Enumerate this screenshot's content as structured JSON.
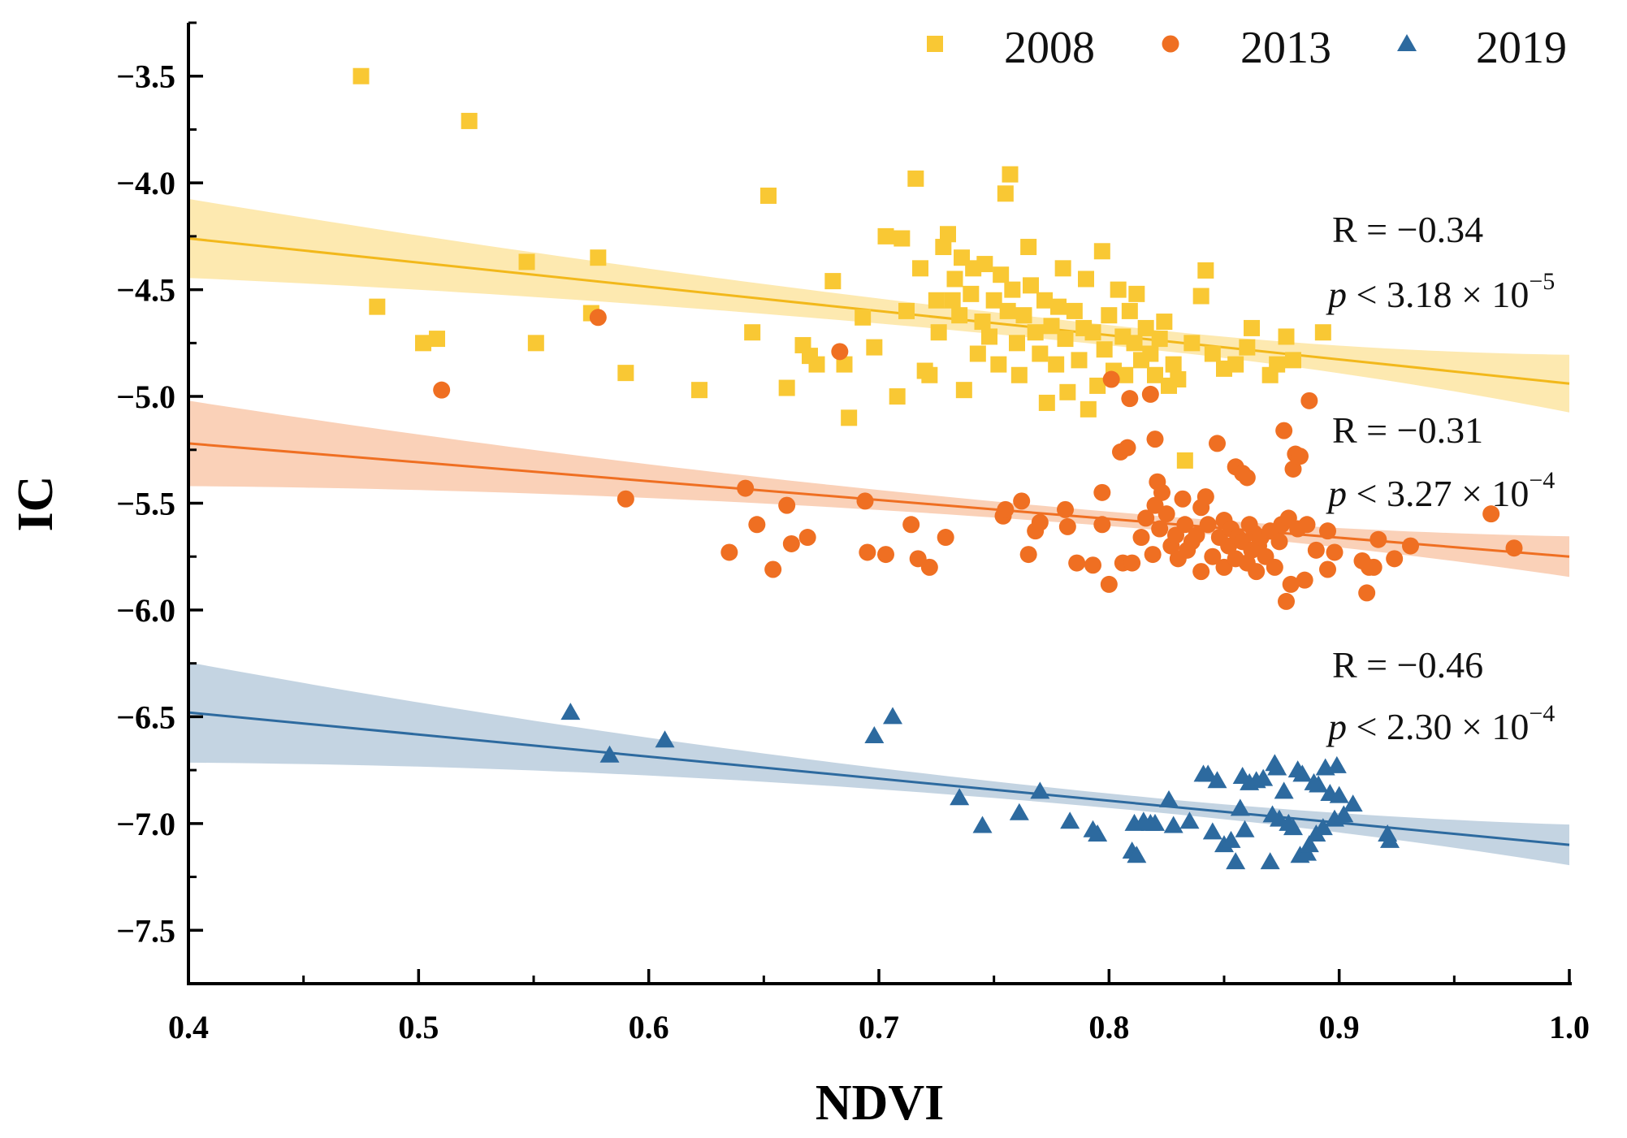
{
  "chart_data": {
    "type": "scatter",
    "title": "",
    "xlabel": "NDVI",
    "ylabel": "IC",
    "xlim": [
      0.4,
      1.0
    ],
    "ylim": [
      -7.75,
      -3.25
    ],
    "xticks": [
      0.4,
      0.5,
      0.6,
      0.7,
      0.8,
      0.9,
      1.0
    ],
    "xtick_labels": [
      "0.4",
      "0.5",
      "0.6",
      "0.7",
      "0.8",
      "0.9",
      "1.0"
    ],
    "yticks": [
      -3.5,
      -4.0,
      -4.5,
      -5.0,
      -5.5,
      -6.0,
      -6.5,
      -7.0,
      -7.5
    ],
    "ytick_labels": [
      "−3.5",
      "−4.0",
      "−4.5",
      "−5.0",
      "−5.5",
      "−6.0",
      "−6.5",
      "−7.0",
      "−7.5"
    ],
    "legend_position": "top-right",
    "series": [
      {
        "name": "2008",
        "marker": "square",
        "color": "#F9C834",
        "band_color": "#FCE39A",
        "line_color": "#F2B81B",
        "fit": {
          "intercept": -4.26,
          "slope_y_at_1": -4.94,
          "ci_start": [
            -4.07,
            -4.44
          ],
          "ci_end": [
            -4.8,
            -5.07
          ]
        },
        "stat": {
          "r": "R = −0.34",
          "p_prefix": "p",
          "p_body": " < 3.18 × 10",
          "p_exp": "−5"
        },
        "points": [
          [
            0.475,
            -3.5
          ],
          [
            0.522,
            -3.71
          ],
          [
            0.547,
            -4.37
          ],
          [
            0.482,
            -4.58
          ],
          [
            0.502,
            -4.75
          ],
          [
            0.508,
            -4.73
          ],
          [
            0.551,
            -4.75
          ],
          [
            0.578,
            -4.35
          ],
          [
            0.575,
            -4.61
          ],
          [
            0.59,
            -4.89
          ],
          [
            0.622,
            -4.97
          ],
          [
            0.645,
            -4.7
          ],
          [
            0.652,
            -4.06
          ],
          [
            0.66,
            -4.96
          ],
          [
            0.667,
            -4.76
          ],
          [
            0.67,
            -4.81
          ],
          [
            0.673,
            -4.85
          ],
          [
            0.68,
            -4.46
          ],
          [
            0.685,
            -4.85
          ],
          [
            0.687,
            -5.1
          ],
          [
            0.693,
            -4.63
          ],
          [
            0.698,
            -4.77
          ],
          [
            0.703,
            -4.25
          ],
          [
            0.708,
            -5.0
          ],
          [
            0.71,
            -4.26
          ],
          [
            0.712,
            -4.6
          ],
          [
            0.716,
            -3.98
          ],
          [
            0.718,
            -4.4
          ],
          [
            0.72,
            -4.88
          ],
          [
            0.722,
            -4.9
          ],
          [
            0.725,
            -4.55
          ],
          [
            0.726,
            -4.7
          ],
          [
            0.728,
            -4.3
          ],
          [
            0.73,
            -4.24
          ],
          [
            0.732,
            -4.55
          ],
          [
            0.733,
            -4.45
          ],
          [
            0.735,
            -4.62
          ],
          [
            0.736,
            -4.35
          ],
          [
            0.737,
            -4.97
          ],
          [
            0.74,
            -4.52
          ],
          [
            0.741,
            -4.4
          ],
          [
            0.743,
            -4.8
          ],
          [
            0.745,
            -4.65
          ],
          [
            0.746,
            -4.38
          ],
          [
            0.748,
            -4.72
          ],
          [
            0.75,
            -4.55
          ],
          [
            0.752,
            -4.85
          ],
          [
            0.753,
            -4.43
          ],
          [
            0.755,
            -4.05
          ],
          [
            0.756,
            -4.6
          ],
          [
            0.757,
            -3.96
          ],
          [
            0.758,
            -4.5
          ],
          [
            0.76,
            -4.75
          ],
          [
            0.761,
            -4.9
          ],
          [
            0.763,
            -4.62
          ],
          [
            0.765,
            -4.3
          ],
          [
            0.766,
            -4.48
          ],
          [
            0.768,
            -4.7
          ],
          [
            0.77,
            -4.8
          ],
          [
            0.772,
            -4.55
          ],
          [
            0.773,
            -5.03
          ],
          [
            0.775,
            -4.67
          ],
          [
            0.777,
            -4.85
          ],
          [
            0.778,
            -4.58
          ],
          [
            0.78,
            -4.4
          ],
          [
            0.781,
            -4.73
          ],
          [
            0.782,
            -4.98
          ],
          [
            0.785,
            -4.6
          ],
          [
            0.787,
            -4.83
          ],
          [
            0.789,
            -4.68
          ],
          [
            0.79,
            -4.45
          ],
          [
            0.791,
            -5.06
          ],
          [
            0.793,
            -4.7
          ],
          [
            0.795,
            -4.95
          ],
          [
            0.797,
            -4.32
          ],
          [
            0.798,
            -4.78
          ],
          [
            0.8,
            -4.62
          ],
          [
            0.802,
            -4.88
          ],
          [
            0.804,
            -4.5
          ],
          [
            0.806,
            -4.72
          ],
          [
            0.807,
            -4.9
          ],
          [
            0.809,
            -4.6
          ],
          [
            0.811,
            -4.75
          ],
          [
            0.812,
            -4.52
          ],
          [
            0.814,
            -4.83
          ],
          [
            0.816,
            -4.68
          ],
          [
            0.818,
            -4.8
          ],
          [
            0.82,
            -4.9
          ],
          [
            0.822,
            -4.73
          ],
          [
            0.824,
            -4.65
          ],
          [
            0.826,
            -4.95
          ],
          [
            0.828,
            -4.85
          ],
          [
            0.83,
            -4.92
          ],
          [
            0.833,
            -5.3
          ],
          [
            0.836,
            -4.75
          ],
          [
            0.84,
            -4.53
          ],
          [
            0.842,
            -4.41
          ],
          [
            0.845,
            -4.8
          ],
          [
            0.85,
            -4.87
          ],
          [
            0.855,
            -4.85
          ],
          [
            0.86,
            -4.77
          ],
          [
            0.862,
            -4.68
          ],
          [
            0.87,
            -4.9
          ],
          [
            0.873,
            -4.85
          ],
          [
            0.877,
            -4.72
          ],
          [
            0.88,
            -4.83
          ],
          [
            0.893,
            -4.7
          ]
        ]
      },
      {
        "name": "2013",
        "marker": "circle",
        "color": "#EF6F22",
        "band_color": "#F8C4A4",
        "line_color": "#EF6F22",
        "fit": {
          "intercept": -5.22,
          "slope_y_at_1": -5.75,
          "ci_start": [
            -5.02,
            -5.42
          ],
          "ci_end": [
            -5.66,
            -5.85
          ]
        },
        "stat": {
          "r": "R = −0.31",
          "p_prefix": "p",
          "p_body": " < 3.27 × 10",
          "p_exp": "−4"
        },
        "points": [
          [
            0.51,
            -4.97
          ],
          [
            0.578,
            -4.63
          ],
          [
            0.59,
            -5.48
          ],
          [
            0.635,
            -5.73
          ],
          [
            0.642,
            -5.43
          ],
          [
            0.647,
            -5.6
          ],
          [
            0.654,
            -5.81
          ],
          [
            0.66,
            -5.51
          ],
          [
            0.662,
            -5.69
          ],
          [
            0.669,
            -5.66
          ],
          [
            0.683,
            -4.79
          ],
          [
            0.694,
            -5.49
          ],
          [
            0.695,
            -5.73
          ],
          [
            0.703,
            -5.74
          ],
          [
            0.714,
            -5.6
          ],
          [
            0.717,
            -5.76
          ],
          [
            0.722,
            -5.8
          ],
          [
            0.729,
            -5.66
          ],
          [
            0.754,
            -5.56
          ],
          [
            0.755,
            -5.53
          ],
          [
            0.762,
            -5.49
          ],
          [
            0.765,
            -5.74
          ],
          [
            0.768,
            -5.63
          ],
          [
            0.77,
            -5.59
          ],
          [
            0.781,
            -5.53
          ],
          [
            0.782,
            -5.61
          ],
          [
            0.786,
            -5.78
          ],
          [
            0.793,
            -5.79
          ],
          [
            0.797,
            -5.6
          ],
          [
            0.797,
            -5.45
          ],
          [
            0.8,
            -5.88
          ],
          [
            0.801,
            -4.92
          ],
          [
            0.805,
            -5.26
          ],
          [
            0.806,
            -5.78
          ],
          [
            0.808,
            -5.24
          ],
          [
            0.809,
            -5.01
          ],
          [
            0.81,
            -5.78
          ],
          [
            0.814,
            -5.66
          ],
          [
            0.816,
            -5.57
          ],
          [
            0.818,
            -4.99
          ],
          [
            0.819,
            -5.74
          ],
          [
            0.82,
            -5.51
          ],
          [
            0.82,
            -5.2
          ],
          [
            0.821,
            -5.4
          ],
          [
            0.822,
            -5.62
          ],
          [
            0.823,
            -5.45
          ],
          [
            0.825,
            -5.55
          ],
          [
            0.827,
            -5.7
          ],
          [
            0.829,
            -5.65
          ],
          [
            0.83,
            -5.76
          ],
          [
            0.832,
            -5.48
          ],
          [
            0.833,
            -5.6
          ],
          [
            0.834,
            -5.72
          ],
          [
            0.836,
            -5.68
          ],
          [
            0.838,
            -5.65
          ],
          [
            0.84,
            -5.52
          ],
          [
            0.84,
            -5.82
          ],
          [
            0.842,
            -5.47
          ],
          [
            0.843,
            -5.6
          ],
          [
            0.845,
            -5.75
          ],
          [
            0.847,
            -5.22
          ],
          [
            0.848,
            -5.66
          ],
          [
            0.85,
            -5.8
          ],
          [
            0.85,
            -5.58
          ],
          [
            0.852,
            -5.7
          ],
          [
            0.853,
            -5.62
          ],
          [
            0.855,
            -5.33
          ],
          [
            0.855,
            -5.76
          ],
          [
            0.856,
            -5.66
          ],
          [
            0.858,
            -5.68
          ],
          [
            0.858,
            -5.36
          ],
          [
            0.86,
            -5.78
          ],
          [
            0.86,
            -5.38
          ],
          [
            0.861,
            -5.6
          ],
          [
            0.862,
            -5.72
          ],
          [
            0.863,
            -5.64
          ],
          [
            0.864,
            -5.82
          ],
          [
            0.865,
            -5.7
          ],
          [
            0.866,
            -5.66
          ],
          [
            0.868,
            -5.75
          ],
          [
            0.87,
            -5.63
          ],
          [
            0.872,
            -5.8
          ],
          [
            0.874,
            -5.68
          ],
          [
            0.875,
            -5.6
          ],
          [
            0.876,
            -5.16
          ],
          [
            0.877,
            -5.96
          ],
          [
            0.878,
            -5.57
          ],
          [
            0.879,
            -5.88
          ],
          [
            0.88,
            -5.34
          ],
          [
            0.881,
            -5.27
          ],
          [
            0.882,
            -5.62
          ],
          [
            0.883,
            -5.28
          ],
          [
            0.885,
            -5.86
          ],
          [
            0.886,
            -5.6
          ],
          [
            0.887,
            -5.02
          ],
          [
            0.89,
            -5.72
          ],
          [
            0.895,
            -5.81
          ],
          [
            0.895,
            -5.63
          ],
          [
            0.898,
            -5.73
          ],
          [
            0.91,
            -5.77
          ],
          [
            0.912,
            -5.92
          ],
          [
            0.913,
            -5.8
          ],
          [
            0.915,
            -5.8
          ],
          [
            0.917,
            -5.67
          ],
          [
            0.924,
            -5.76
          ],
          [
            0.931,
            -5.7
          ],
          [
            0.966,
            -5.55
          ],
          [
            0.976,
            -5.71
          ]
        ]
      },
      {
        "name": "2019",
        "marker": "triangle",
        "color": "#2D6A9F",
        "band_color": "#B3C8DA",
        "line_color": "#2D6A9F",
        "fit": {
          "intercept": -6.48,
          "slope_y_at_1": -7.1,
          "ci_start": [
            -6.25,
            -6.72
          ],
          "ci_end": [
            -7.0,
            -7.19
          ]
        },
        "stat": {
          "r": "R = −0.46",
          "p_prefix": "p",
          "p_body": " < 2.30 × 10",
          "p_exp": "−4"
        },
        "points": [
          [
            0.566,
            -6.48
          ],
          [
            0.583,
            -6.68
          ],
          [
            0.607,
            -6.61
          ],
          [
            0.698,
            -6.59
          ],
          [
            0.706,
            -6.5
          ],
          [
            0.735,
            -6.88
          ],
          [
            0.745,
            -7.01
          ],
          [
            0.761,
            -6.95
          ],
          [
            0.77,
            -6.85
          ],
          [
            0.783,
            -6.99
          ],
          [
            0.793,
            -7.03
          ],
          [
            0.795,
            -7.05
          ],
          [
            0.81,
            -7.13
          ],
          [
            0.811,
            -7.0
          ],
          [
            0.812,
            -7.15
          ],
          [
            0.815,
            -6.99
          ],
          [
            0.818,
            -7.0
          ],
          [
            0.82,
            -7.0
          ],
          [
            0.826,
            -6.89
          ],
          [
            0.828,
            -7.01
          ],
          [
            0.835,
            -6.99
          ],
          [
            0.841,
            -6.77
          ],
          [
            0.843,
            -6.77
          ],
          [
            0.845,
            -7.04
          ],
          [
            0.847,
            -6.8
          ],
          [
            0.85,
            -7.1
          ],
          [
            0.853,
            -7.08
          ],
          [
            0.855,
            -7.18
          ],
          [
            0.857,
            -6.93
          ],
          [
            0.858,
            -6.78
          ],
          [
            0.859,
            -7.03
          ],
          [
            0.861,
            -6.81
          ],
          [
            0.864,
            -6.8
          ],
          [
            0.867,
            -6.79
          ],
          [
            0.87,
            -7.18
          ],
          [
            0.871,
            -6.96
          ],
          [
            0.872,
            -6.72
          ],
          [
            0.873,
            -6.74
          ],
          [
            0.874,
            -6.98
          ],
          [
            0.876,
            -6.85
          ],
          [
            0.878,
            -7.0
          ],
          [
            0.88,
            -7.02
          ],
          [
            0.882,
            -6.75
          ],
          [
            0.883,
            -7.15
          ],
          [
            0.884,
            -6.77
          ],
          [
            0.886,
            -7.14
          ],
          [
            0.887,
            -7.1
          ],
          [
            0.889,
            -6.81
          ],
          [
            0.89,
            -7.05
          ],
          [
            0.891,
            -6.82
          ],
          [
            0.893,
            -7.02
          ],
          [
            0.894,
            -6.74
          ],
          [
            0.896,
            -6.86
          ],
          [
            0.898,
            -6.98
          ],
          [
            0.899,
            -6.73
          ],
          [
            0.9,
            -6.87
          ],
          [
            0.902,
            -6.96
          ],
          [
            0.906,
            -6.91
          ],
          [
            0.921,
            -7.05
          ],
          [
            0.922,
            -7.08
          ]
        ]
      }
    ]
  }
}
